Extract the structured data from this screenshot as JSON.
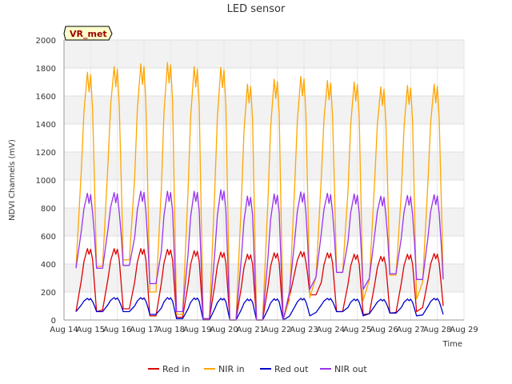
{
  "chart_data": {
    "type": "line",
    "title": "LED sensor",
    "xlabel": "Time",
    "ylabel": "NDVI Channels (mV)",
    "ylim": [
      0,
      2000
    ],
    "xlim": [
      14,
      29
    ],
    "y_ticks": [
      "0",
      "200",
      "400",
      "600",
      "800",
      "1000",
      "1200",
      "1400",
      "1600",
      "1800",
      "2000"
    ],
    "x_ticks": [
      "Aug 14",
      "Aug 15",
      "Aug 16",
      "Aug 17",
      "Aug 18",
      "Aug 19",
      "Aug 20",
      "Aug 21",
      "Aug 22",
      "Aug 23",
      "Aug 24",
      "Aug 25",
      "Aug 26",
      "Aug 27",
      "Aug 28",
      "Aug 29"
    ],
    "annotation": "VR_met",
    "legend_position": "bottom",
    "grid": true,
    "series": [
      {
        "name": "Red in",
        "color": "#dd0000",
        "day_peaks": [
          510,
          510,
          510,
          505,
          495,
          485,
          470,
          480,
          490,
          480,
          470,
          455,
          470,
          475
        ],
        "day_lows": [
          60,
          80,
          30,
          20,
          5,
          0,
          0,
          0,
          180,
          60,
          40,
          50,
          60,
          100
        ]
      },
      {
        "name": "NIR in",
        "color": "#ffa500",
        "day_peaks": [
          1770,
          1810,
          1830,
          1840,
          1810,
          1805,
          1685,
          1720,
          1740,
          1710,
          1700,
          1665,
          1675,
          1685
        ],
        "day_lows": [
          380,
          430,
          200,
          40,
          10,
          0,
          0,
          0,
          160,
          340,
          140,
          320,
          150,
          300
        ]
      },
      {
        "name": "Red out",
        "color": "#0000cc",
        "day_peaks": [
          155,
          160,
          160,
          160,
          158,
          155,
          150,
          152,
          155,
          155,
          150,
          148,
          150,
          155
        ],
        "day_lows": [
          60,
          60,
          40,
          10,
          0,
          0,
          0,
          0,
          30,
          60,
          30,
          50,
          30,
          40
        ]
      },
      {
        "name": "NIR out",
        "color": "#9933ee",
        "day_peaks": [
          905,
          910,
          920,
          920,
          920,
          930,
          885,
          900,
          915,
          905,
          900,
          885,
          890,
          895
        ],
        "day_lows": [
          370,
          390,
          260,
          60,
          10,
          0,
          0,
          0,
          220,
          340,
          220,
          330,
          290,
          290
        ]
      }
    ]
  }
}
